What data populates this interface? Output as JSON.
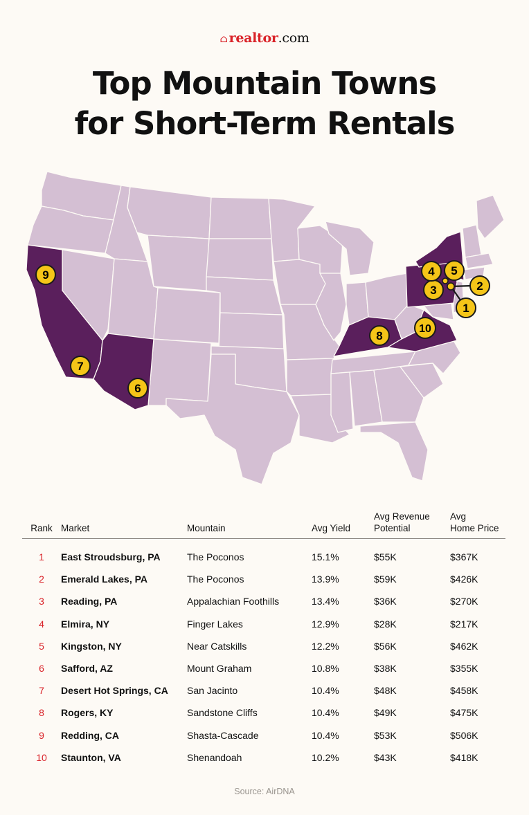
{
  "logo": {
    "brand": "realtor",
    "tld": ".com"
  },
  "title_line1": "Top Mountain Towns",
  "title_line2": "for Short-Term Rentals",
  "colors": {
    "state_default": "#d4bfd3",
    "state_highlight": "#5a1f5c",
    "marker": "#f5c518",
    "rank": "#d92228",
    "background": "#fdfaf5"
  },
  "map": {
    "highlighted_states": [
      "California",
      "Arizona",
      "Kentucky",
      "Virginia",
      "New York",
      "Pennsylvania"
    ],
    "markers": [
      "1",
      "2",
      "3",
      "4",
      "5",
      "6",
      "7",
      "8",
      "9",
      "10"
    ]
  },
  "table": {
    "headers": {
      "rank": "Rank",
      "market": "Market",
      "mountain": "Mountain",
      "yield": "Avg Yield",
      "revenue_1": "Avg Revenue",
      "revenue_2": "Potential",
      "price_1": "Avg",
      "price_2": "Home Price"
    },
    "rows": [
      {
        "rank": "1",
        "market": "East Stroudsburg, PA",
        "mountain": "The Poconos",
        "yield": "15.1%",
        "revenue": "$55K",
        "price": "$367K"
      },
      {
        "rank": "2",
        "market": "Emerald Lakes, PA",
        "mountain": "The Poconos",
        "yield": "13.9%",
        "revenue": "$59K",
        "price": "$426K"
      },
      {
        "rank": "3",
        "market": "Reading, PA",
        "mountain": "Appalachian Foothills",
        "yield": "13.4%",
        "revenue": "$36K",
        "price": "$270K"
      },
      {
        "rank": "4",
        "market": "Elmira, NY",
        "mountain": "Finger Lakes",
        "yield": "12.9%",
        "revenue": "$28K",
        "price": "$217K"
      },
      {
        "rank": "5",
        "market": "Kingston, NY",
        "mountain": "Near Catskills",
        "yield": "12.2%",
        "revenue": "$56K",
        "price": "$462K"
      },
      {
        "rank": "6",
        "market": "Safford, AZ",
        "mountain": "Mount Graham",
        "yield": "10.8%",
        "revenue": "$38K",
        "price": "$355K"
      },
      {
        "rank": "7",
        "market": "Desert Hot Springs, CA",
        "mountain": "San Jacinto",
        "yield": "10.4%",
        "revenue": "$48K",
        "price": "$458K"
      },
      {
        "rank": "8",
        "market": "Rogers, KY",
        "mountain": "Sandstone Cliffs",
        "yield": "10.4%",
        "revenue": "$49K",
        "price": "$475K"
      },
      {
        "rank": "9",
        "market": "Redding, CA",
        "mountain": "Shasta-Cascade",
        "yield": "10.4%",
        "revenue": "$53K",
        "price": "$506K"
      },
      {
        "rank": "10",
        "market": "Staunton, VA",
        "mountain": "Shenandoah",
        "yield": "10.2%",
        "revenue": "$43K",
        "price": "$418K"
      }
    ]
  },
  "source": "Source: AirDNA"
}
